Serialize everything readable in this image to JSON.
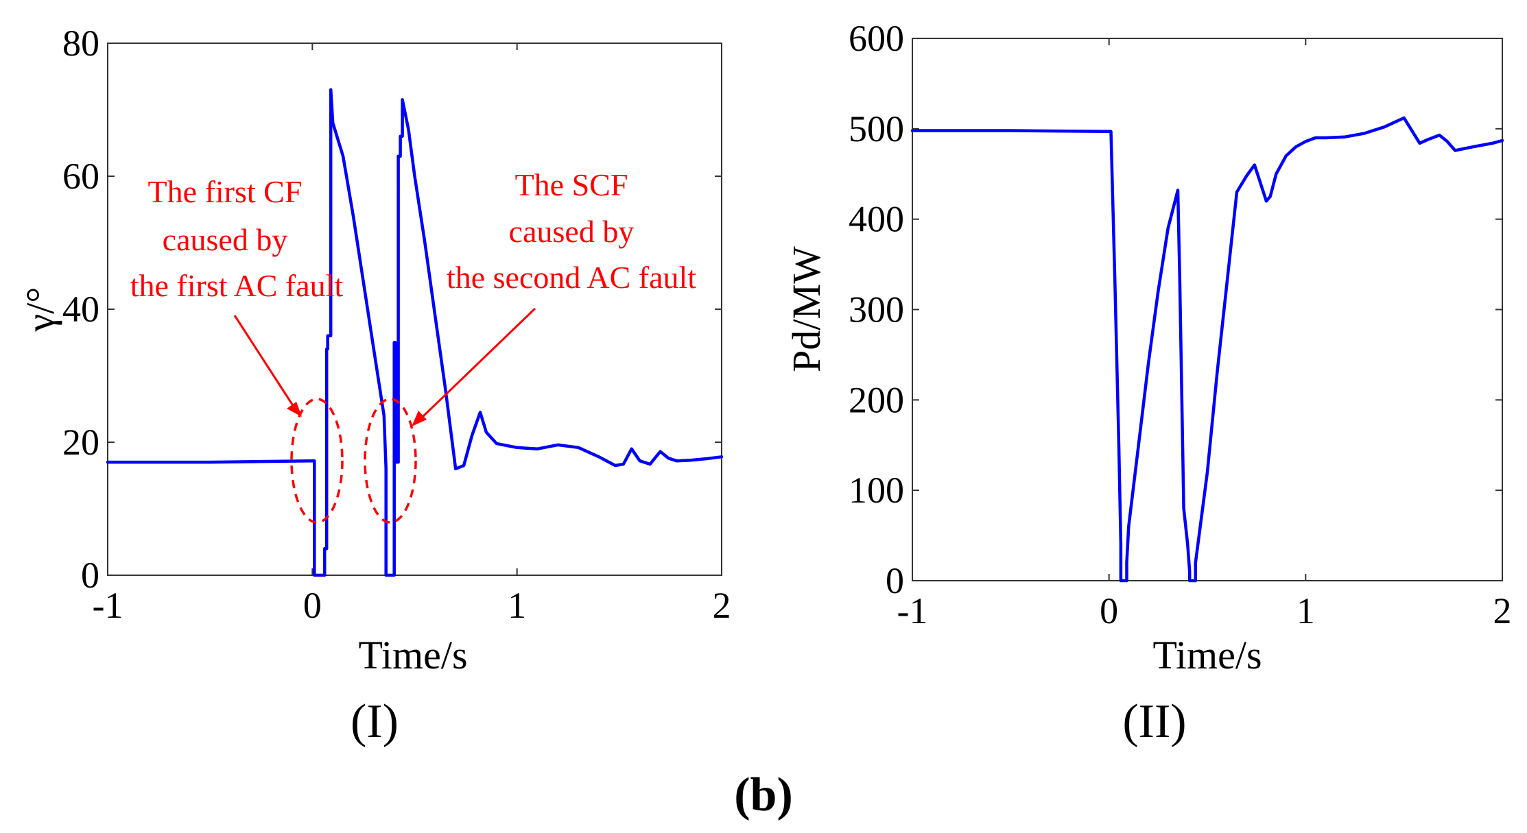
{
  "figure_label": "(b)",
  "chart_data": [
    {
      "type": "line",
      "panel_label": "(I)",
      "xlabel": "Time/s",
      "ylabel": "γ/°",
      "xlim": [
        -1,
        2
      ],
      "ylim": [
        0,
        80
      ],
      "xticks": [
        -1,
        0,
        1,
        2
      ],
      "yticks": [
        0,
        20,
        40,
        60,
        80
      ],
      "grid": false,
      "colors": {
        "line": "#0000ff",
        "annotation": "#ff0000"
      },
      "series": [
        {
          "name": "gamma",
          "x": [
            -1,
            -0.5,
            0,
            0.01,
            0.01,
            0.06,
            0.06,
            0.07,
            0.07,
            0.075,
            0.075,
            0.09,
            0.09,
            0.1,
            0.15,
            0.2,
            0.25,
            0.3,
            0.35,
            0.36,
            0.36,
            0.4,
            0.4,
            0.405,
            0.405,
            0.42,
            0.42,
            0.43,
            0.43,
            0.44,
            0.44,
            0.47,
            0.5,
            0.55,
            0.6,
            0.65,
            0.7,
            0.74,
            0.78,
            0.82,
            0.85,
            0.9,
            0.95,
            1.0,
            1.1,
            1.2,
            1.3,
            1.4,
            1.48,
            1.52,
            1.56,
            1.6,
            1.65,
            1.7,
            1.74,
            1.78,
            1.85,
            1.92,
            2.0
          ],
          "y": [
            17,
            17,
            17.2,
            17.2,
            0,
            0,
            4,
            4,
            34,
            34,
            36,
            36,
            73,
            68,
            63,
            54,
            44,
            34,
            24,
            16,
            0,
            0,
            35,
            35,
            17,
            17,
            63,
            63,
            66,
            66,
            71.5,
            67,
            60,
            50,
            39,
            28,
            16,
            16.5,
            21,
            24.5,
            21.5,
            19.8,
            19.5,
            19.2,
            19,
            19.6,
            19.2,
            17.8,
            16.5,
            16.7,
            19,
            17.2,
            16.7,
            18.6,
            17.6,
            17.2,
            17.3,
            17.5,
            17.8
          ]
        }
      ],
      "annotations": [
        {
          "lines": [
            "The first CF",
            "caused by",
            "the first AC fault"
          ]
        },
        {
          "lines": [
            "The SCF",
            "caused by",
            "the second AC fault"
          ]
        }
      ]
    },
    {
      "type": "line",
      "panel_label": "(II)",
      "xlabel": "Time/s",
      "ylabel": "Pd/MW",
      "xlim": [
        -1,
        2
      ],
      "ylim": [
        0,
        600
      ],
      "xticks": [
        -1,
        0,
        1,
        2
      ],
      "yticks": [
        0,
        100,
        200,
        300,
        400,
        500,
        600
      ],
      "grid": false,
      "colors": {
        "line": "#0000ff"
      },
      "series": [
        {
          "name": "Pd",
          "x": [
            -1,
            -0.5,
            0,
            0.01,
            0.03,
            0.05,
            0.06,
            0.06,
            0.09,
            0.09,
            0.1,
            0.15,
            0.2,
            0.25,
            0.3,
            0.35,
            0.36,
            0.38,
            0.4,
            0.41,
            0.41,
            0.44,
            0.44,
            0.5,
            0.55,
            0.6,
            0.65,
            0.7,
            0.74,
            0.77,
            0.8,
            0.82,
            0.85,
            0.9,
            0.95,
            1.0,
            1.05,
            1.1,
            1.2,
            1.3,
            1.4,
            1.45,
            1.5,
            1.52,
            1.58,
            1.62,
            1.68,
            1.72,
            1.76,
            1.85,
            1.95,
            2.0
          ],
          "y": [
            498,
            498,
            497,
            497,
            330,
            150,
            40,
            0,
            0,
            20,
            60,
            150,
            240,
            320,
            390,
            432,
            330,
            80,
            40,
            10,
            0,
            0,
            20,
            120,
            230,
            330,
            430,
            448,
            460,
            440,
            420,
            425,
            450,
            470,
            480,
            486,
            490,
            490,
            491,
            495,
            502,
            507,
            512,
            505,
            484,
            488,
            493,
            486,
            476,
            480,
            484,
            487
          ]
        }
      ]
    }
  ]
}
